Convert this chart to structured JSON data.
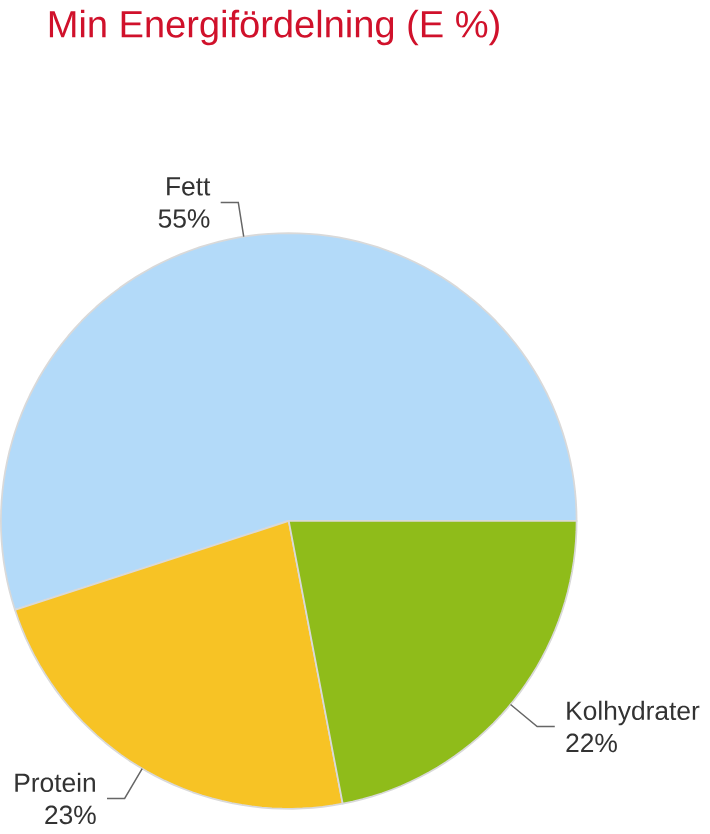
{
  "chart_data": {
    "type": "pie",
    "title": "Min Energifördelning (E %)",
    "categories": [
      "Fett",
      "Protein",
      "Kolhydrater"
    ],
    "values": [
      55,
      23,
      22
    ],
    "colors": [
      "#b3daf9",
      "#f7c325",
      "#8fbc1a"
    ],
    "value_labels": [
      "55%",
      "23%",
      "22%"
    ]
  }
}
